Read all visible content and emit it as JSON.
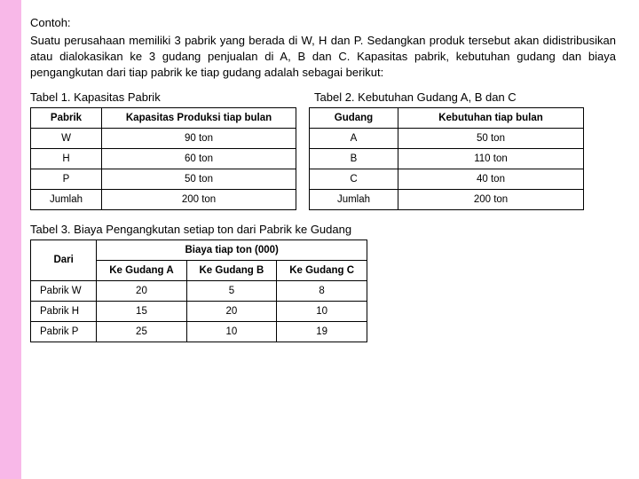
{
  "heading": "Contoh:",
  "paragraph": "Suatu perusahaan memiliki 3 pabrik yang berada di W, H dan P. Sedangkan produk tersebut akan didistribusikan atau dialokasikan ke 3 gudang penjualan di A, B dan C. Kapasitas pabrik, kebutuhan gudang dan biaya pengangkutan dari tiap pabrik ke tiap gudang adalah sebagai berikut:",
  "table1": {
    "caption": "Tabel 1. Kapasitas Pabrik",
    "headers": [
      "Pabrik",
      "Kapasitas Produksi tiap bulan"
    ],
    "rows": [
      [
        "W",
        "90 ton"
      ],
      [
        "H",
        "60 ton"
      ],
      [
        "P",
        "50 ton"
      ],
      [
        "Jumlah",
        "200 ton"
      ]
    ]
  },
  "table2": {
    "caption": "Tabel 2. Kebutuhan Gudang A, B dan C",
    "headers": [
      "Gudang",
      "Kebutuhan tiap bulan"
    ],
    "rows": [
      [
        "A",
        "50 ton"
      ],
      [
        "B",
        "110 ton"
      ],
      [
        "C",
        "40 ton"
      ],
      [
        "Jumlah",
        "200 ton"
      ]
    ]
  },
  "table3": {
    "caption": "Tabel 3. Biaya Pengangkutan setiap ton dari Pabrik ke Gudang",
    "headers": {
      "dari": "Dari",
      "main": "Biaya tiap ton (000)",
      "sub": [
        "Ke Gudang A",
        "Ke Gudang B",
        "Ke Gudang C"
      ]
    },
    "rows": [
      [
        "Pabrik W",
        "20",
        "5",
        "8"
      ],
      [
        "Pabrik H",
        "15",
        "20",
        "10"
      ],
      [
        "Pabrik P",
        "25",
        "10",
        "19"
      ]
    ]
  },
  "colors": {
    "stripe": "#f8b8e8",
    "background": "#ffffff",
    "border": "#000000"
  }
}
